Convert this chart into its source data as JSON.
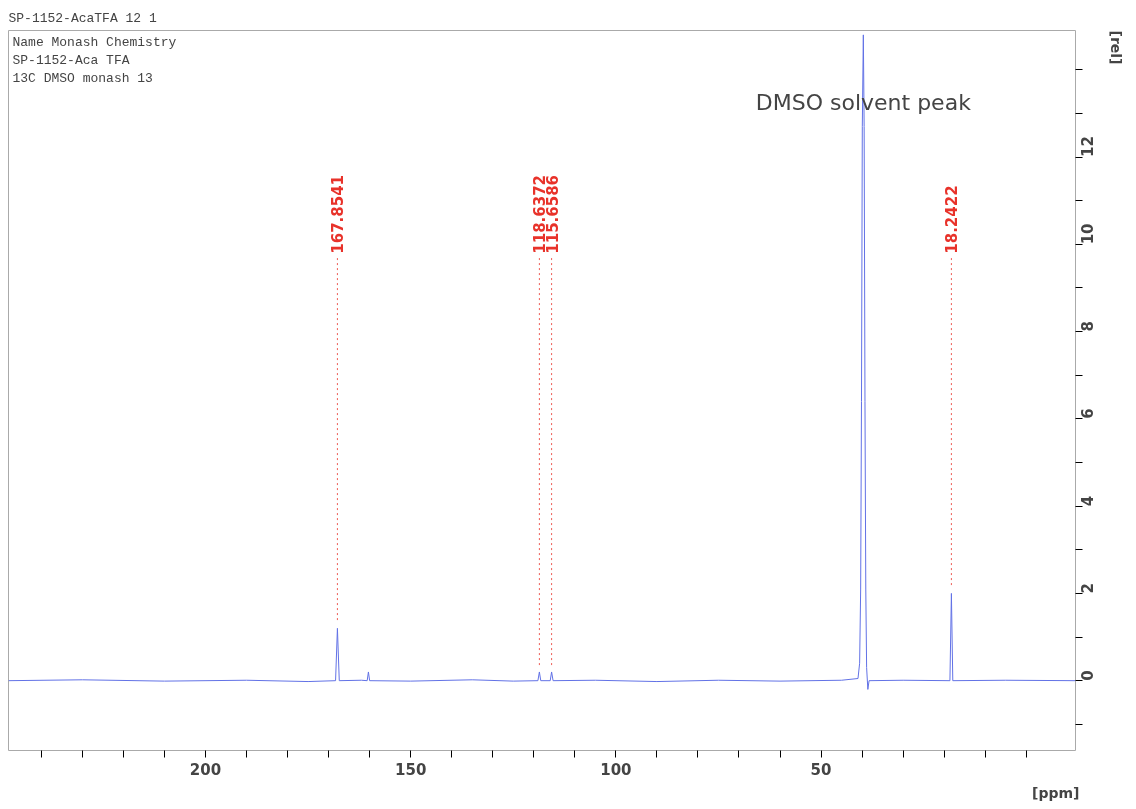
{
  "chart_data": {
    "type": "line",
    "title": "SP-1152-AcaTFA  12  1",
    "xlabel": "[ppm]",
    "ylabel": "[rel]",
    "annotations": [
      "Name Monash Chemistry",
      "SP-1152-Aca TFA",
      "13C DMSO monash 13",
      {
        "text": "DMSO solvent peak",
        "x": 39.7,
        "y": 14.8
      },
      {
        "text": "167.8541",
        "x": 167.8541,
        "y": 1.2
      },
      {
        "text": "118.6372",
        "x": 118.6372,
        "y": 0.2
      },
      {
        "text": "115.6586",
        "x": 115.6586,
        "y": 0.2
      },
      {
        "text": "18.2422",
        "x": 18.2422,
        "y": 2.0
      }
    ],
    "series": [
      {
        "color": "#6272e6",
        "x": [
          248,
          230,
          210,
          190,
          175,
          168.3,
          167.8541,
          167.4,
          162,
          160.6,
          160.3,
          160.0,
          150,
          135,
          125,
          119.0,
          118.6372,
          118.3,
          116.0,
          115.6586,
          115.3,
          105,
          90,
          75,
          60,
          45,
          41.0,
          40.6,
          40.35,
          40.15,
          39.95,
          39.7,
          39.5,
          39.3,
          39.1,
          38.9,
          38.6,
          38.3,
          30,
          18.6,
          18.2422,
          17.9,
          5,
          -12
        ],
        "values": [
          0.0,
          0.02,
          -0.01,
          0.01,
          -0.02,
          0.0,
          1.2,
          0.0,
          0.01,
          0.0,
          0.2,
          0.0,
          -0.01,
          0.02,
          -0.01,
          0.0,
          0.2,
          0.0,
          0.0,
          0.2,
          0.0,
          0.01,
          -0.02,
          0.01,
          -0.01,
          0.01,
          0.05,
          0.4,
          2.1,
          6.4,
          12.7,
          14.8,
          12.7,
          6.4,
          2.1,
          0.3,
          -0.2,
          0.0,
          0.01,
          0.0,
          2.0,
          0.0,
          0.01,
          0.0
        ]
      }
    ],
    "xlim": [
      248,
      -12
    ],
    "ylim": [
      -1.6,
      14.9
    ],
    "xticks": [
      {
        "value": 240,
        "label": null
      },
      {
        "value": 230,
        "label": null
      },
      {
        "value": 220,
        "label": null
      },
      {
        "value": 210,
        "label": null
      },
      200,
      {
        "value": 190,
        "label": null
      },
      {
        "value": 180,
        "label": null
      },
      {
        "value": 170,
        "label": null
      },
      {
        "value": 160,
        "label": null
      },
      150,
      {
        "value": 140,
        "label": null
      },
      {
        "value": 130,
        "label": null
      },
      {
        "value": 120,
        "label": null
      },
      {
        "value": 110,
        "label": null
      },
      100,
      {
        "value": 90,
        "label": null
      },
      {
        "value": 80,
        "label": null
      },
      {
        "value": 70,
        "label": null
      },
      {
        "value": 60,
        "label": null
      },
      50,
      {
        "value": 40,
        "label": null
      },
      {
        "value": 30,
        "label": null
      },
      {
        "value": 20,
        "label": null
      },
      {
        "value": 10,
        "label": null
      },
      {
        "value": 0,
        "label": null
      }
    ],
    "yticks": [
      {
        "value": -1,
        "label": null
      },
      0,
      {
        "value": 1,
        "label": null
      },
      2,
      {
        "value": 3,
        "label": null
      },
      4,
      {
        "value": 5,
        "label": null
      },
      6,
      {
        "value": 7,
        "label": null
      },
      8,
      {
        "value": 9,
        "label": null
      },
      10,
      {
        "value": 11,
        "label": null
      },
      12,
      {
        "value": 13,
        "label": null
      },
      {
        "value": 14,
        "label": null
      }
    ],
    "grid": false,
    "marker": "none",
    "line_style": "solid"
  }
}
